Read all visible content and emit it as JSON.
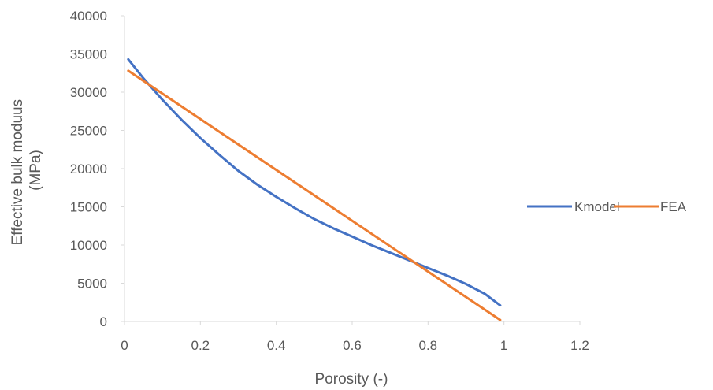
{
  "chart_data": {
    "type": "line",
    "title": "",
    "xlabel": "Porosity (-)",
    "ylabel": [
      "Effective bulk moduus",
      "(MPa)"
    ],
    "xlim": [
      0,
      1.2
    ],
    "ylim": [
      0,
      40000
    ],
    "xticks": [
      "0",
      "0.2",
      "0.4",
      "0.6",
      "0.8",
      "1",
      "1.2"
    ],
    "yticks": [
      "0",
      "5000",
      "10000",
      "15000",
      "20000",
      "25000",
      "30000",
      "35000",
      "40000"
    ],
    "grid": false,
    "legend_position": "right",
    "series": [
      {
        "name": "Kmodel",
        "color": "#4472c4",
        "x": [
          0.01,
          0.05,
          0.1,
          0.15,
          0.2,
          0.25,
          0.3,
          0.35,
          0.4,
          0.45,
          0.5,
          0.55,
          0.6,
          0.65,
          0.7,
          0.75,
          0.8,
          0.85,
          0.9,
          0.95,
          0.99
        ],
        "y": [
          34300,
          31800,
          29000,
          26400,
          24000,
          21800,
          19700,
          17900,
          16300,
          14800,
          13400,
          12200,
          11100,
          10000,
          9000,
          8000,
          7000,
          6000,
          4900,
          3600,
          2100
        ]
      },
      {
        "name": "FEA",
        "color": "#ed7d31",
        "x": [
          0.01,
          0.99
        ],
        "y": [
          32800,
          200
        ]
      }
    ]
  }
}
